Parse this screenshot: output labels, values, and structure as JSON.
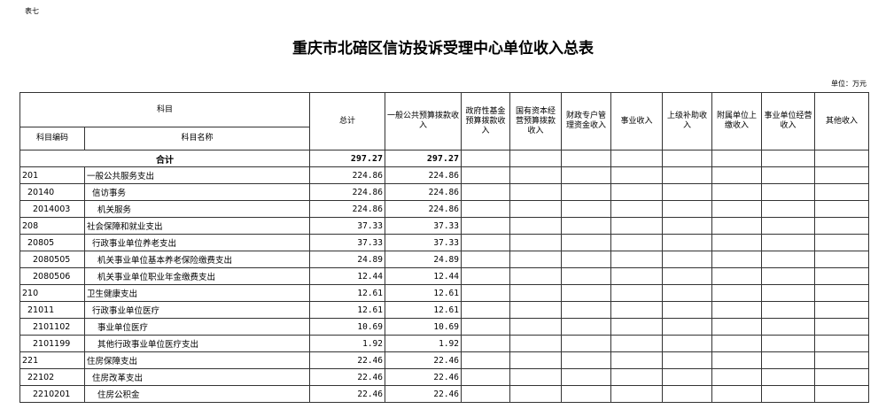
{
  "header": {
    "table_no": "表七",
    "title": "重庆市北碚区信访投诉受理中心单位收入总表",
    "unit": "单位：万元"
  },
  "columns": {
    "subject": "科目",
    "code": "科目编码",
    "name": "科目名称",
    "total": "总计",
    "general": "一般公共预算拨款收入",
    "gov_fund": "政府性基金预算拨款收入",
    "state_capital": "国有资本经营预算拨款收入",
    "special_account": "财政专户管理资金收入",
    "business": "事业收入",
    "superior": "上级补助收入",
    "affiliated": "附属单位上缴收入",
    "operating": "事业单位经营收入",
    "other": "其他收入"
  },
  "total_row": {
    "label": "合计",
    "total": "297.27",
    "general": "297.27"
  },
  "rows": [
    {
      "code": "201",
      "name": "一般公共服务支出",
      "total": "224.86",
      "general": "224.86",
      "level": 0
    },
    {
      "code": "20140",
      "name": "信访事务",
      "total": "224.86",
      "general": "224.86",
      "level": 1
    },
    {
      "code": "2014003",
      "name": "机关服务",
      "total": "224.86",
      "general": "224.86",
      "level": 2
    },
    {
      "code": "208",
      "name": "社会保障和就业支出",
      "total": "37.33",
      "general": "37.33",
      "level": 0
    },
    {
      "code": "20805",
      "name": "行政事业单位养老支出",
      "total": "37.33",
      "general": "37.33",
      "level": 1
    },
    {
      "code": "2080505",
      "name": "机关事业单位基本养老保险缴费支出",
      "total": "24.89",
      "general": "24.89",
      "level": 2
    },
    {
      "code": "2080506",
      "name": "机关事业单位职业年金缴费支出",
      "total": "12.44",
      "general": "12.44",
      "level": 2
    },
    {
      "code": "210",
      "name": "卫生健康支出",
      "total": "12.61",
      "general": "12.61",
      "level": 0
    },
    {
      "code": "21011",
      "name": "行政事业单位医疗",
      "total": "12.61",
      "general": "12.61",
      "level": 1
    },
    {
      "code": "2101102",
      "name": "事业单位医疗",
      "total": "10.69",
      "general": "10.69",
      "level": 2
    },
    {
      "code": "2101199",
      "name": "其他行政事业单位医疗支出",
      "total": "1.92",
      "general": "1.92",
      "level": 2
    },
    {
      "code": "221",
      "name": "住房保障支出",
      "total": "22.46",
      "general": "22.46",
      "level": 0
    },
    {
      "code": "22102",
      "name": "住房改革支出",
      "total": "22.46",
      "general": "22.46",
      "level": 1
    },
    {
      "code": "2210201",
      "name": "住房公积金",
      "total": "22.46",
      "general": "22.46",
      "level": 2
    }
  ]
}
